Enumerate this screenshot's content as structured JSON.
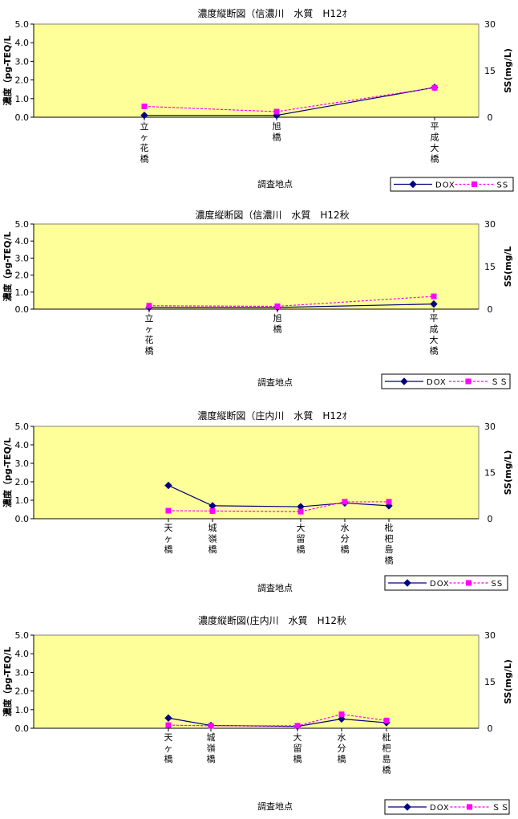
{
  "chart_data": [
    {
      "type": "line",
      "title": "濃度縦断図（信濃川　水質　H12ｵ",
      "xlabel": "調査地点",
      "ylabel": "濃度（pg-TEQ/L",
      "y2label": "SS(mg/L)",
      "ylim": [
        0,
        5
      ],
      "y2lim": [
        0,
        30
      ],
      "yticks": [
        "0.0",
        "1.0",
        "2.0",
        "3.0",
        "4.0",
        "5.0"
      ],
      "y2ticks": [
        "0",
        "15",
        "30"
      ],
      "categories": [
        "立ヶ花橋",
        "旭橋",
        "平成大橋"
      ],
      "series": [
        {
          "name": "DOX",
          "axis": "left",
          "values": [
            0.1,
            0.1,
            1.6
          ],
          "color": "#000080",
          "marker": "diamond",
          "dash": false
        },
        {
          "name": "SS",
          "axis": "right",
          "values": [
            3.5,
            1.8,
            9.5
          ],
          "color": "#ff00ff",
          "marker": "square",
          "dash": true
        }
      ],
      "legend": "bottom-right",
      "plot_bg": "#ffff99"
    },
    {
      "type": "line",
      "title": "濃度縦断図（信濃川　水質　H12秋",
      "xlabel": "調査地点",
      "ylabel": "濃度（pg-TEQ/L",
      "y2label": "SS(mg/L",
      "ylim": [
        0,
        5
      ],
      "y2lim": [
        0,
        30
      ],
      "yticks": [
        "0.0",
        "1.0",
        "2.0",
        "3.0",
        "4.0",
        "5.0"
      ],
      "y2ticks": [
        "0",
        "15",
        "30"
      ],
      "categories": [
        "立ヶ花橋",
        "旭橋",
        "平成大橋"
      ],
      "series": [
        {
          "name": "DOX",
          "axis": "left",
          "values": [
            0.1,
            0.1,
            0.3
          ],
          "color": "#000080",
          "marker": "diamond",
          "dash": false
        },
        {
          "name": "ＳＳ",
          "axis": "right",
          "values": [
            1.2,
            1.0,
            4.5
          ],
          "color": "#ff00ff",
          "marker": "square",
          "dash": true
        }
      ],
      "legend": "bottom-right",
      "plot_bg": "#ffff99"
    },
    {
      "type": "line",
      "title": "濃度縦断図（庄内川　水質　H12ｵ",
      "xlabel": "調査地点",
      "ylabel": "濃度（pg-TEQ/L",
      "y2label": "SS(mg/L)",
      "ylim": [
        0,
        5
      ],
      "y2lim": [
        0,
        30
      ],
      "yticks": [
        "0.0",
        "1.0",
        "2.0",
        "3.0",
        "4.0",
        "5.0"
      ],
      "y2ticks": [
        "0",
        "15",
        "30"
      ],
      "categories": [
        "天ヶ橋",
        "城嶺橋",
        "大留橋",
        "水分橋",
        "枇杷島橋"
      ],
      "series": [
        {
          "name": "DOX",
          "axis": "left",
          "values": [
            1.8,
            0.7,
            0.65,
            0.85,
            0.7
          ],
          "color": "#000080",
          "marker": "diamond",
          "dash": false
        },
        {
          "name": "SS",
          "axis": "right",
          "values": [
            2.6,
            2.5,
            2.3,
            5.5,
            5.5
          ],
          "color": "#ff00ff",
          "marker": "square",
          "dash": true
        }
      ],
      "legend": "bottom-right",
      "plot_bg": "#ffff99"
    },
    {
      "type": "line",
      "title": "濃度縦断図(庄内川　水質　H12秋",
      "xlabel": "調査地点",
      "ylabel": "濃度（pg-TEQ/L",
      "y2label": "SS(mg/L)",
      "ylim": [
        0,
        5
      ],
      "y2lim": [
        0,
        30
      ],
      "yticks": [
        "0.0",
        "1.0",
        "2.0",
        "3.0",
        "4.0",
        "5.0"
      ],
      "y2ticks": [
        "0",
        "15",
        "30"
      ],
      "categories": [
        "天ヶ橋",
        "城嶺橋",
        "大留橋",
        "水分橋",
        "枇杷島橋"
      ],
      "series": [
        {
          "name": "DOX",
          "axis": "left",
          "values": [
            0.55,
            0.15,
            0.1,
            0.5,
            0.3
          ],
          "color": "#000080",
          "marker": "diamond",
          "dash": false
        },
        {
          "name": "ＳＳ",
          "axis": "right",
          "values": [
            1.0,
            0.8,
            0.8,
            4.5,
            2.5
          ],
          "color": "#ff00ff",
          "marker": "square",
          "dash": true
        }
      ],
      "legend": "bottom-right",
      "plot_bg": "#ffff99"
    }
  ]
}
